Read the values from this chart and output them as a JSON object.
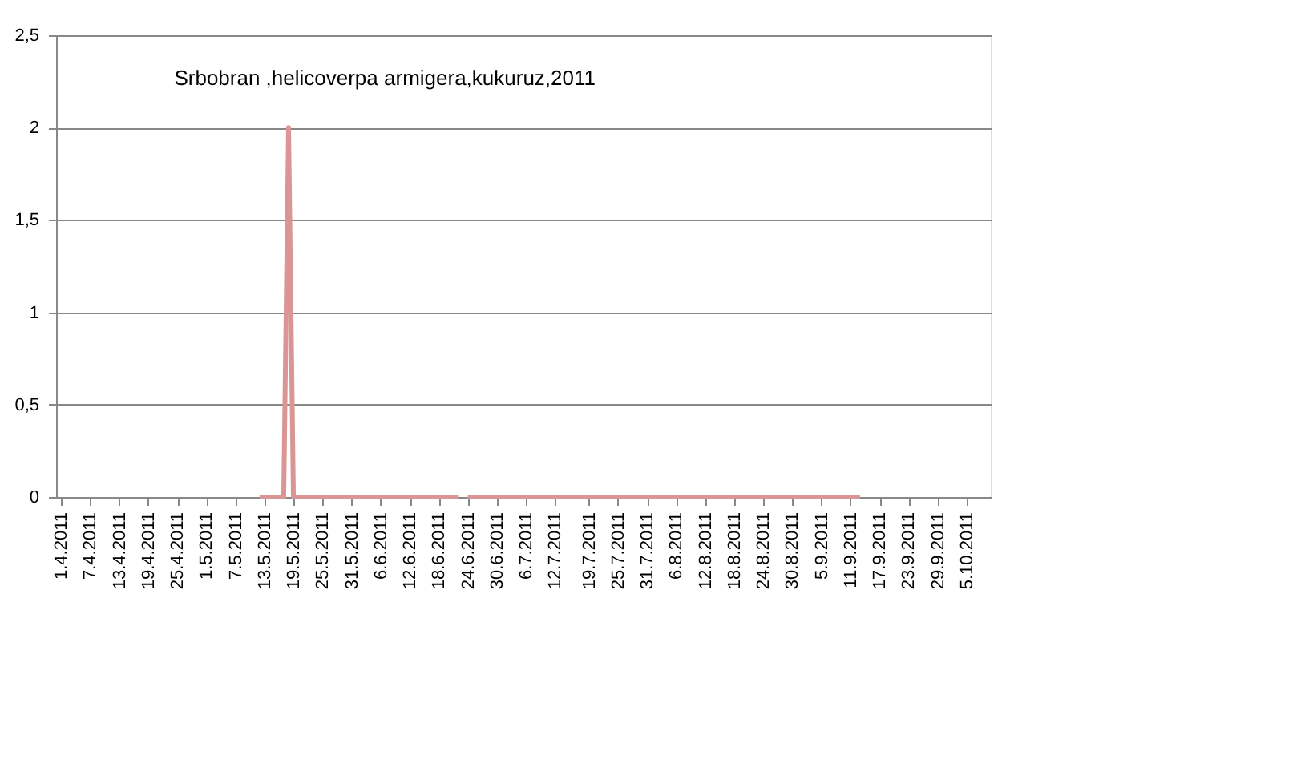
{
  "chart_data": {
    "type": "line",
    "title": "Srbobran ,helicoverpa armigera,kukuruz,2011",
    "series": [
      {
        "color": "#d99694",
        "x": [
          "2011-05-12",
          "2011-05-17",
          "2011-05-18",
          "2011-05-19",
          "2011-06-22",
          "2011-06-23",
          "2011-06-24",
          "2011-09-13"
        ],
        "values": [
          0,
          0,
          2,
          0,
          0,
          null,
          0,
          0
        ]
      }
    ],
    "xlim": [
      "2011-03-31",
      "2011-10-10"
    ],
    "xticks": [
      {
        "value": "2011-04-01",
        "label": "1.4.2011"
      },
      {
        "value": "2011-04-07",
        "label": "7.4.2011"
      },
      {
        "value": "2011-04-13",
        "label": "13.4.2011"
      },
      {
        "value": "2011-04-19",
        "label": "19.4.2011"
      },
      {
        "value": "2011-04-25",
        "label": "25.4.2011"
      },
      {
        "value": "2011-05-01",
        "label": "1.5.2011"
      },
      {
        "value": "2011-05-07",
        "label": "7.5.2011"
      },
      {
        "value": "2011-05-13",
        "label": "13.5.2011"
      },
      {
        "value": "2011-05-19",
        "label": "19.5.2011"
      },
      {
        "value": "2011-05-25",
        "label": "25.5.2011"
      },
      {
        "value": "2011-05-31",
        "label": "31.5.2011"
      },
      {
        "value": "2011-06-06",
        "label": "6.6.2011"
      },
      {
        "value": "2011-06-12",
        "label": "12.6.2011"
      },
      {
        "value": "2011-06-18",
        "label": "18.6.2011"
      },
      {
        "value": "2011-06-24",
        "label": "24.6.2011"
      },
      {
        "value": "2011-06-30",
        "label": "30.6.2011"
      },
      {
        "value": "2011-07-06",
        "label": "6.7.2011"
      },
      {
        "value": "2011-07-12",
        "label": "12.7.2011"
      },
      {
        "value": "2011-07-19",
        "label": "19.7.2011"
      },
      {
        "value": "2011-07-25",
        "label": "25.7.2011"
      },
      {
        "value": "2011-07-31",
        "label": "31.7.2011"
      },
      {
        "value": "2011-08-06",
        "label": "6.8.2011"
      },
      {
        "value": "2011-08-12",
        "label": "12.8.2011"
      },
      {
        "value": "2011-08-18",
        "label": "18.8.2011"
      },
      {
        "value": "2011-08-24",
        "label": "24.8.2011"
      },
      {
        "value": "2011-08-30",
        "label": "30.8.2011"
      },
      {
        "value": "2011-09-05",
        "label": "5.9.2011"
      },
      {
        "value": "2011-09-11",
        "label": "11.9.2011"
      },
      {
        "value": "2011-09-17",
        "label": "17.9.2011"
      },
      {
        "value": "2011-09-23",
        "label": "23.9.2011"
      },
      {
        "value": "2011-09-29",
        "label": "29.9.2011"
      },
      {
        "value": "2011-10-05",
        "label": "5.10.2011"
      }
    ],
    "ylim": [
      0,
      2.5
    ],
    "yticks": [
      {
        "value": 0,
        "label": "0"
      },
      {
        "value": 0.5,
        "label": "0,5"
      },
      {
        "value": 1,
        "label": "1"
      },
      {
        "value": 1.5,
        "label": "1,5"
      },
      {
        "value": 2,
        "label": "2"
      },
      {
        "value": 2.5,
        "label": "2,5"
      }
    ],
    "grid": "y",
    "legend": false,
    "marker": "none",
    "line_style": "solid"
  }
}
